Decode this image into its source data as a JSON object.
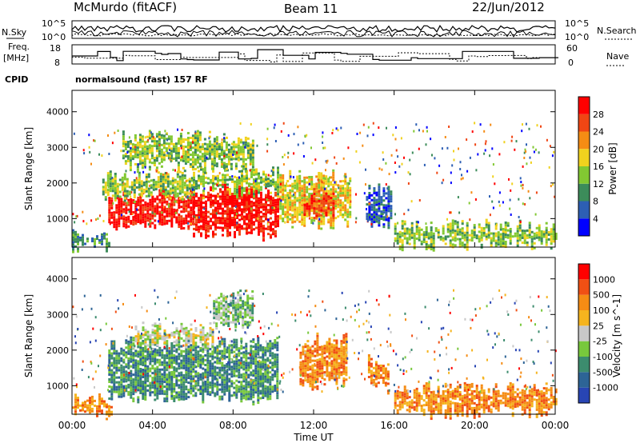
{
  "header": {
    "station": "McMurdo (fitACF)",
    "beam": "Beam 11",
    "date": "22/Jun/2012",
    "cpid_label": "CPID",
    "cpid_text": "normalsound (fast) 157 RF"
  },
  "top_panels": {
    "nsky_label": "N.Sky",
    "nsearch_label": "N.Search",
    "nsky_ticks": [
      "10^5",
      "10^0"
    ],
    "nsearch_ticks": [
      "10^5",
      "10^0"
    ],
    "freq_label_1": "Freq.",
    "freq_label_2": "[MHz]",
    "freq_ticks": [
      "18",
      "8"
    ],
    "nave_label": "Nave",
    "nave_ticks": [
      "60",
      "0"
    ]
  },
  "chart_data": [
    {
      "type": "heatmap",
      "name": "power",
      "ylabel": "Slant Range [km]",
      "ylim": [
        200,
        4600
      ],
      "yticks": [
        1000,
        2000,
        3000,
        4000
      ],
      "xlim": [
        0,
        24
      ],
      "colorbar_label": "Power [dB]",
      "colorbar_ticks": [
        "28",
        "24",
        "20",
        "16",
        "12",
        "8",
        "4"
      ],
      "colors": [
        "#0000ff",
        "#2d5fb4",
        "#3c8c5a",
        "#82c832",
        "#f0d21e",
        "#f58c14",
        "#f04614",
        "#ff0000"
      ],
      "bands": [
        {
          "t0": 0.0,
          "t1": 1.8,
          "r0": 250,
          "r1": 500,
          "level": 2
        },
        {
          "t0": 1.8,
          "t1": 6.0,
          "r0": 850,
          "r1": 1700,
          "level": 7
        },
        {
          "t0": 1.5,
          "t1": 6.0,
          "r0": 1700,
          "r1": 2200,
          "level": 3
        },
        {
          "t0": 6.0,
          "t1": 10.2,
          "r0": 600,
          "r1": 1800,
          "level": 7
        },
        {
          "t0": 6.0,
          "t1": 10.2,
          "r0": 1800,
          "r1": 2300,
          "level": 3
        },
        {
          "t0": 10.3,
          "t1": 13.8,
          "r0": 900,
          "r1": 2200,
          "level": 4
        },
        {
          "t0": 11.5,
          "t1": 13.0,
          "r0": 1100,
          "r1": 1700,
          "level": 6
        },
        {
          "t0": 14.6,
          "t1": 15.8,
          "r0": 900,
          "r1": 1800,
          "level": 1
        },
        {
          "t0": 16.0,
          "t1": 24.0,
          "r0": 300,
          "r1": 800,
          "level": 3
        },
        {
          "t0": 2.5,
          "t1": 9.0,
          "r0": 2500,
          "r1": 3300,
          "level": 3
        }
      ]
    },
    {
      "type": "heatmap",
      "name": "velocity",
      "ylabel": "Slant Range [km]",
      "ylim": [
        200,
        4600
      ],
      "yticks": [
        1000,
        2000,
        3000,
        4000
      ],
      "xlim": [
        0,
        24
      ],
      "xticks": [
        "00:00",
        "04:00",
        "08:00",
        "12:00",
        "16:00",
        "20:00",
        "00:00"
      ],
      "xlabel": "Time UT",
      "colorbar_label": "Velocity [m s^-1]",
      "colorbar_ticks": [
        "1000",
        "500",
        "100",
        "25",
        "-25",
        "-100",
        "-500",
        "-1000"
      ],
      "colors": [
        "#2845b4",
        "#2d6496",
        "#3c8c6e",
        "#78c83c",
        "#c8c8c8",
        "#f5b41e",
        "#f58c14",
        "#f05014",
        "#ff0000"
      ],
      "bands": [
        {
          "t0": 0.0,
          "t1": 2.0,
          "r0": 250,
          "r1": 600,
          "level": 6
        },
        {
          "t0": 1.8,
          "t1": 10.2,
          "r0": 700,
          "r1": 2200,
          "level": 2
        },
        {
          "t0": 3.0,
          "t1": 7.0,
          "r0": 2200,
          "r1": 2600,
          "level": 4
        },
        {
          "t0": 11.3,
          "t1": 13.6,
          "r0": 1100,
          "r1": 2300,
          "level": 6
        },
        {
          "t0": 14.7,
          "t1": 15.7,
          "r0": 1000,
          "r1": 1700,
          "level": 6
        },
        {
          "t0": 16.0,
          "t1": 24.0,
          "r0": 300,
          "r1": 900,
          "level": 6
        },
        {
          "t0": 7.0,
          "t1": 9.0,
          "r0": 2800,
          "r1": 3500,
          "level": 3
        }
      ]
    }
  ]
}
